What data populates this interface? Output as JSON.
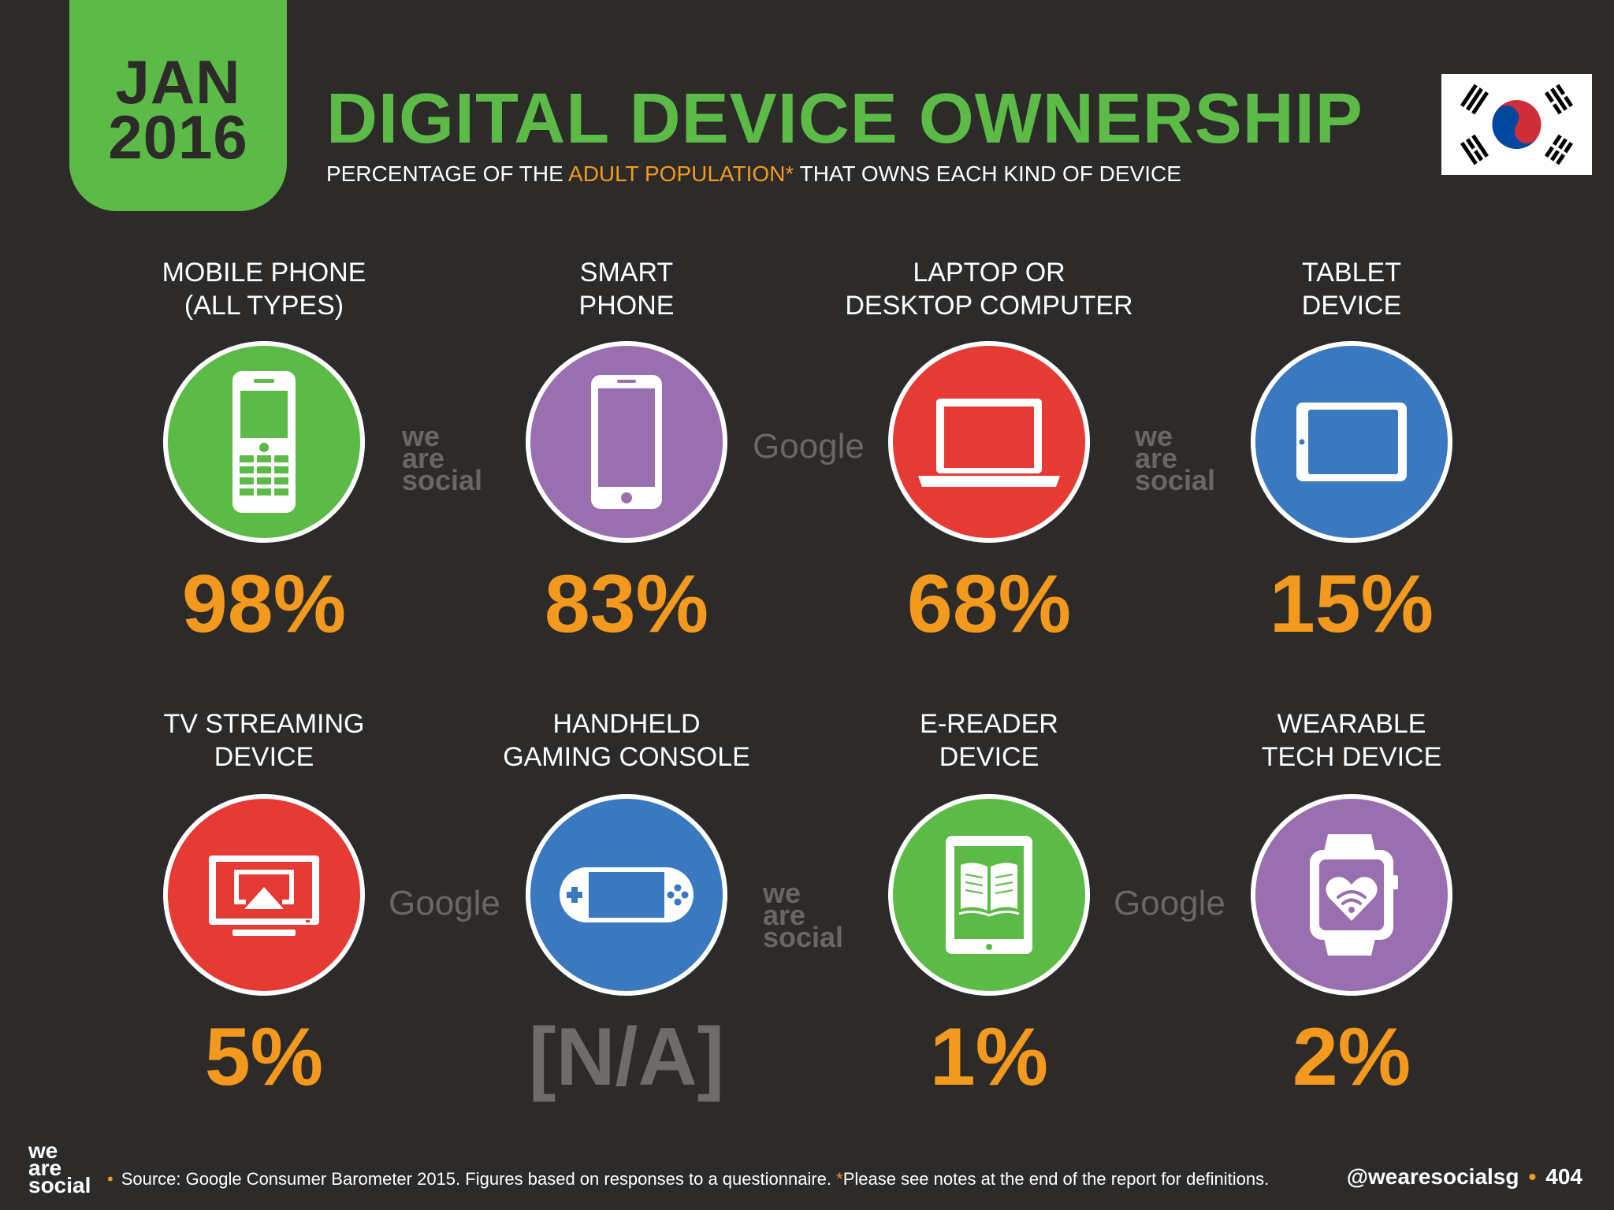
{
  "header": {
    "month": "JAN",
    "year": "2016",
    "title": "DIGITAL DEVICE OWNERSHIP",
    "subtitle_pre": "PERCENTAGE OF THE ",
    "subtitle_highlight": "ADULT POPULATION*",
    "subtitle_post": " THAT OWNS EACH KIND OF DEVICE"
  },
  "colors": {
    "green": "#5cba47",
    "purple": "#9a6fb0",
    "red": "#e63b34",
    "blue": "#3a78c0",
    "orange": "#f39a1e",
    "background": "#2d2b2a"
  },
  "devices": [
    {
      "label_1": "MOBILE PHONE",
      "label_2": "(ALL TYPES)",
      "value": "98%",
      "icon": "mobile-phone-icon"
    },
    {
      "label_1": "SMART",
      "label_2": "PHONE",
      "value": "83%",
      "icon": "smartphone-icon"
    },
    {
      "label_1": "LAPTOP OR",
      "label_2": "DESKTOP COMPUTER",
      "value": "68%",
      "icon": "laptop-icon"
    },
    {
      "label_1": "TABLET",
      "label_2": "DEVICE",
      "value": "15%",
      "icon": "tablet-icon"
    },
    {
      "label_1": "TV STREAMING",
      "label_2": "DEVICE",
      "value": "5%",
      "icon": "tv-icon"
    },
    {
      "label_1": "HANDHELD",
      "label_2": "GAMING CONSOLE",
      "value": "[N/A]",
      "icon": "gaming-console-icon"
    },
    {
      "label_1": "E-READER",
      "label_2": "DEVICE",
      "value": "1%",
      "icon": "ereader-icon"
    },
    {
      "label_1": "WEARABLE",
      "label_2": "TECH DEVICE",
      "value": "2%",
      "icon": "smartwatch-icon"
    }
  ],
  "watermarks": {
    "was_1": "we",
    "was_2": "are",
    "was_3": "social",
    "google": "Google"
  },
  "footer": {
    "logo_1": "we",
    "logo_2": "are",
    "logo_3": "social",
    "bullet": "•",
    "source": "Source: Google Consumer Barometer 2015. Figures based on responses to a questionnaire. ",
    "star": "*",
    "note": "Please see notes at the end of the report for definitions.",
    "handle": "@wearesocialsg",
    "page": "404"
  }
}
